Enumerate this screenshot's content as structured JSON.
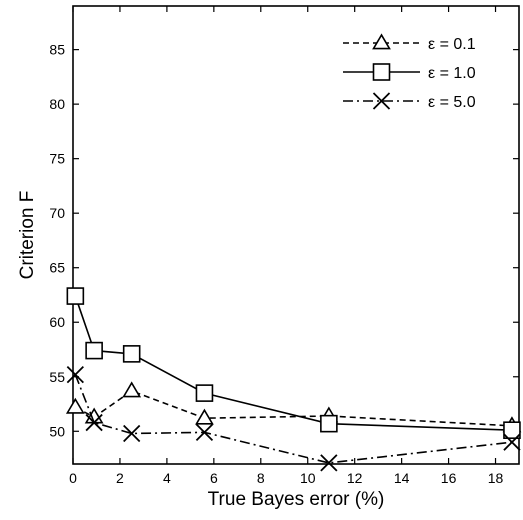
{
  "chart_data": {
    "type": "line",
    "title": "",
    "xlabel": "True Bayes error (%)",
    "ylabel": "Criterion F",
    "xlim": [
      0,
      19
    ],
    "ylim": [
      47,
      89
    ],
    "xticks": [
      0,
      2,
      4,
      6,
      8,
      10,
      12,
      14,
      16,
      18
    ],
    "yticks": [
      50,
      55,
      60,
      65,
      70,
      75,
      80,
      85
    ],
    "grid": false,
    "legend_position": "top-right",
    "series": [
      {
        "name": "ε = 0.1",
        "marker": "triangle",
        "line_style": "dashed",
        "x": [
          0.1,
          0.9,
          2.5,
          5.6,
          10.9,
          18.7
        ],
        "y": [
          52.2,
          51.3,
          53.7,
          51.2,
          51.4,
          50.5
        ]
      },
      {
        "name": "ε = 1.0",
        "marker": "square",
        "line_style": "solid",
        "x": [
          0.1,
          0.9,
          2.5,
          5.6,
          10.9,
          18.7
        ],
        "y": [
          62.4,
          57.4,
          57.1,
          53.5,
          50.7,
          50.1
        ]
      },
      {
        "name": "ε = 5.0",
        "marker": "x",
        "line_style": "dashdot",
        "x": [
          0.1,
          0.9,
          2.5,
          5.6,
          10.9,
          18.7
        ],
        "y": [
          55.2,
          50.8,
          49.8,
          49.9,
          47.1,
          49.0
        ]
      }
    ]
  }
}
